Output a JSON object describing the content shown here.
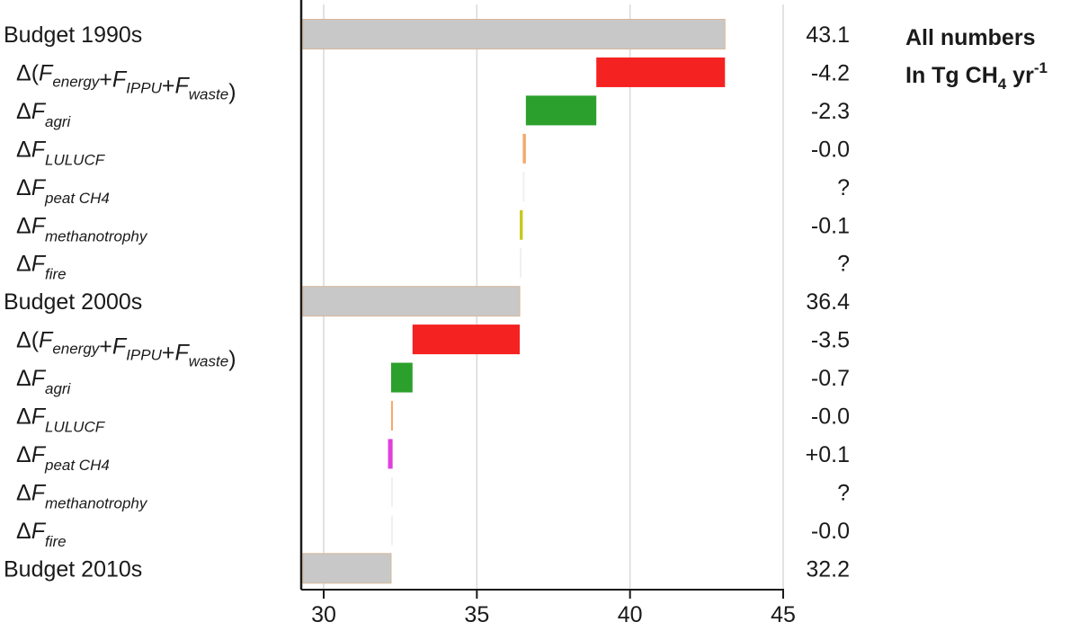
{
  "chart_data": {
    "type": "bar",
    "subtype": "waterfall",
    "orientation": "horizontal",
    "xlim": [
      30,
      45
    ],
    "x_ticks": [
      "30",
      "35",
      "40",
      "45"
    ],
    "grid": true,
    "note": {
      "line1": "All numbers",
      "line2_prefix": "In Tg CH",
      "line2_sub": "4",
      "line2_mid": " yr",
      "line2_sup": "-1"
    },
    "rows": [
      {
        "prefix": "Budget 1990s",
        "value_label": "43.1",
        "kind": "total",
        "start": 29.2,
        "end": 43.1,
        "color": "#c8c8c8"
      },
      {
        "prefix": "Δ(",
        "terms": [
          "energy",
          "IPPU",
          "waste"
        ],
        "suffix": ")",
        "value_label": "-4.2",
        "kind": "delta",
        "start": 43.1,
        "end": 38.9,
        "color": "#f52222"
      },
      {
        "prefix": "Δ",
        "var": "F",
        "sub": "agri",
        "value_label": "-2.3",
        "kind": "delta",
        "start": 38.9,
        "end": 36.6,
        "color": "#2ca02c"
      },
      {
        "prefix": "Δ",
        "var": "F",
        "sub": "LULUCF",
        "value_label": "-0.0",
        "kind": "delta",
        "start": 36.6,
        "end": 36.5,
        "color": "#f5a86a"
      },
      {
        "prefix": "Δ",
        "var": "F",
        "sub": "peat CH4",
        "value_label": "?",
        "kind": "delta",
        "start": 36.5,
        "end": 36.5,
        "color": "#f0f0f0"
      },
      {
        "prefix": "Δ",
        "var": "F",
        "sub": "methanotrophy",
        "value_label": "-0.1",
        "kind": "delta",
        "start": 36.5,
        "end": 36.4,
        "color": "#c8c820"
      },
      {
        "prefix": "Δ",
        "var": "F",
        "sub": "fire",
        "value_label": "?",
        "kind": "delta",
        "start": 36.4,
        "end": 36.4,
        "color": "#f0f0f0"
      },
      {
        "prefix": "Budget 2000s",
        "value_label": "36.4",
        "kind": "total",
        "start": 29.2,
        "end": 36.4,
        "color": "#c8c8c8"
      },
      {
        "prefix": "Δ(",
        "terms": [
          "energy",
          "IPPU",
          "waste"
        ],
        "suffix": ")",
        "value_label": "-3.5",
        "kind": "delta",
        "start": 36.4,
        "end": 32.9,
        "color": "#f52222"
      },
      {
        "prefix": "Δ",
        "var": "F",
        "sub": "agri",
        "value_label": "-0.7",
        "kind": "delta",
        "start": 32.9,
        "end": 32.2,
        "color": "#2ca02c"
      },
      {
        "prefix": "Δ",
        "var": "F",
        "sub": "LULUCF",
        "value_label": "-0.0",
        "kind": "delta",
        "start": 32.2,
        "end": 32.2,
        "color": "#f5a86a"
      },
      {
        "prefix": "Δ",
        "var": "F",
        "sub": "peat CH4",
        "value_label": "+0.1",
        "kind": "delta",
        "start": 32.1,
        "end": 32.25,
        "color": "#e040e0"
      },
      {
        "prefix": "Δ",
        "var": "F",
        "sub": "methanotrophy",
        "value_label": "?",
        "kind": "delta",
        "start": 32.2,
        "end": 32.2,
        "color": "#f0f0f0"
      },
      {
        "prefix": "Δ",
        "var": "F",
        "sub": "fire",
        "value_label": "-0.0",
        "kind": "delta",
        "start": 32.2,
        "end": 32.2,
        "color": "#f0f0f0"
      },
      {
        "prefix": "Budget 2010s",
        "value_label": "32.2",
        "kind": "total",
        "start": 29.2,
        "end": 32.2,
        "color": "#c8c8c8"
      }
    ]
  }
}
